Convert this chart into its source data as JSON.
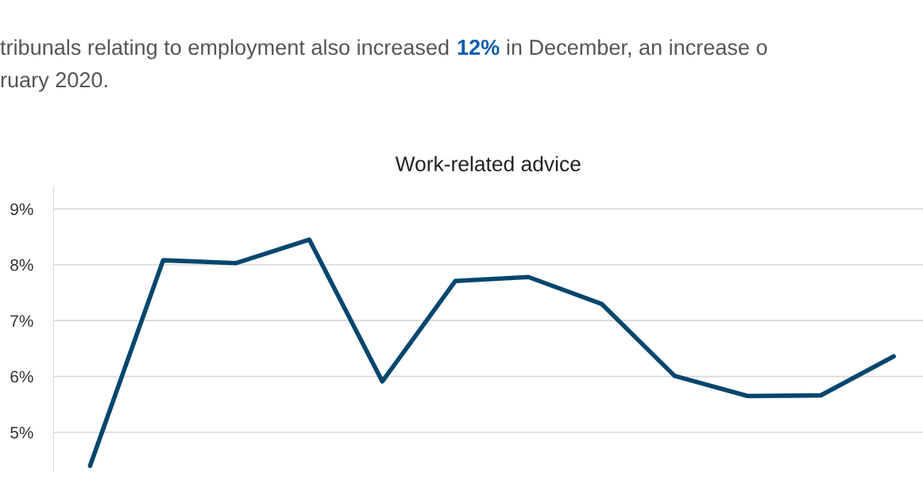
{
  "chart_data": {
    "type": "line",
    "title": "Work-related advice",
    "annotations": [
      "tribunals relating to employment also increased ",
      "12%",
      " in December, an increase o",
      "ruary 2020."
    ],
    "categories": [
      null,
      null,
      null,
      null,
      null,
      null,
      null,
      null,
      null,
      null,
      null,
      null
    ],
    "series": [
      {
        "color": "#00466e",
        "values": [
          4.4,
          8.08,
          8.03,
          8.45,
          5.91,
          7.71,
          7.78,
          7.3,
          6.01,
          5.65,
          5.66,
          6.36
        ]
      }
    ],
    "ylim": [
      4.3,
      9.4
    ],
    "yticks": [
      {
        "value": 5,
        "label": "5%"
      },
      {
        "value": 6,
        "label": "6%"
      },
      {
        "value": 7,
        "label": "7%"
      },
      {
        "value": 8,
        "label": "8%"
      },
      {
        "value": 9,
        "label": "9%"
      }
    ],
    "grid": "y",
    "legend": false,
    "marker": "none",
    "line_style": "solid"
  }
}
